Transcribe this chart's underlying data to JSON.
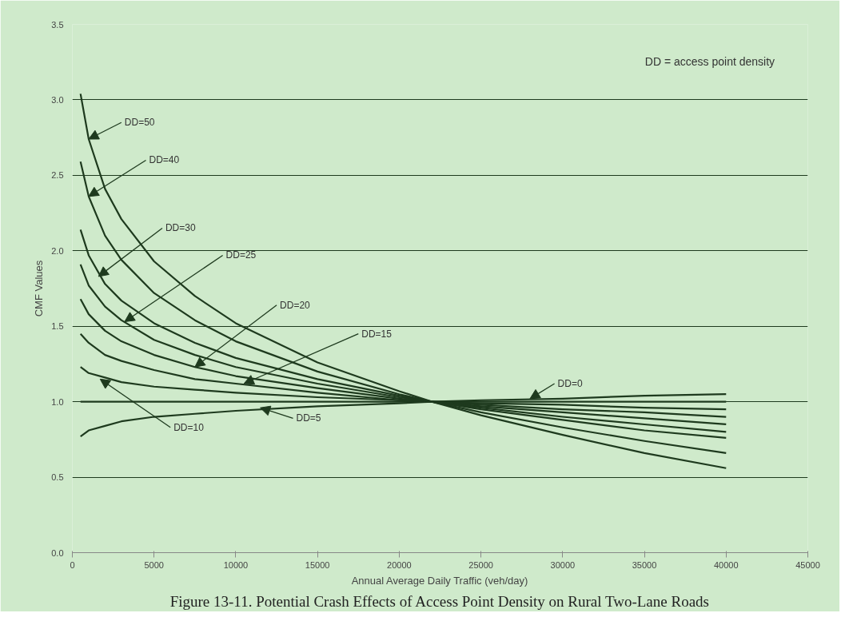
{
  "chart_data": {
    "type": "line",
    "title": "Figure 13-11. Potential Crash Effects of Access Point Density on Rural Two-Lane Roads",
    "xlabel": "Annual Average Daily Traffic (veh/day)",
    "ylabel": "CMF Values",
    "x": [
      500,
      1000,
      2000,
      3000,
      5000,
      7500,
      10000,
      15000,
      20000,
      22000,
      25000,
      30000,
      35000,
      40000
    ],
    "series": [
      {
        "color": "#1e3a1e",
        "values": [
          0.77,
          0.81,
          0.84,
          0.87,
          0.9,
          0.92,
          0.94,
          0.97,
          0.99,
          1.0,
          1.01,
          1.02,
          1.04,
          1.05
        ]
      },
      {
        "color": "#1e3a1e",
        "values": [
          1.0,
          1.0,
          1.0,
          1.0,
          1.0,
          1.0,
          1.0,
          1.0,
          1.0,
          1.0,
          1.0,
          1.0,
          1.0,
          1.0
        ]
      },
      {
        "color": "#1e3a1e",
        "values": [
          1.23,
          1.19,
          1.16,
          1.13,
          1.1,
          1.08,
          1.06,
          1.03,
          1.01,
          1.0,
          0.99,
          0.98,
          0.96,
          0.95
        ]
      },
      {
        "color": "#1e3a1e",
        "values": [
          1.45,
          1.39,
          1.31,
          1.27,
          1.21,
          1.15,
          1.12,
          1.06,
          1.01,
          1.0,
          0.98,
          0.95,
          0.93,
          0.9
        ]
      },
      {
        "color": "#1e3a1e",
        "values": [
          1.68,
          1.58,
          1.47,
          1.4,
          1.31,
          1.23,
          1.17,
          1.09,
          1.02,
          1.0,
          0.97,
          0.93,
          0.89,
          0.85
        ]
      },
      {
        "color": "#1e3a1e",
        "values": [
          1.91,
          1.77,
          1.63,
          1.54,
          1.41,
          1.31,
          1.23,
          1.12,
          1.03,
          1.0,
          0.96,
          0.9,
          0.85,
          0.8
        ]
      },
      {
        "color": "#1e3a1e",
        "values": [
          2.14,
          1.97,
          1.78,
          1.67,
          1.52,
          1.39,
          1.29,
          1.15,
          1.04,
          1.0,
          0.95,
          0.88,
          0.81,
          0.76
        ]
      },
      {
        "color": "#1e3a1e",
        "values": [
          2.59,
          2.36,
          2.1,
          1.94,
          1.72,
          1.54,
          1.4,
          1.2,
          1.05,
          1.0,
          0.93,
          0.83,
          0.74,
          0.66
        ]
      },
      {
        "color": "#1e3a1e",
        "values": [
          3.04,
          2.74,
          2.41,
          2.21,
          1.93,
          1.7,
          1.52,
          1.26,
          1.07,
          1.0,
          0.91,
          0.78,
          0.66,
          0.56
        ]
      }
    ],
    "xlim": [
      0,
      45000
    ],
    "xticks": [
      0,
      5000,
      10000,
      15000,
      20000,
      25000,
      30000,
      35000,
      40000,
      45000
    ],
    "ylim": [
      0,
      3.5
    ],
    "yticks": [
      {
        "value": 0,
        "label": "0.0"
      },
      {
        "value": 0.5,
        "label": "0.5"
      },
      {
        "value": 1,
        "label": "1.0"
      },
      {
        "value": 1.5,
        "label": "1.5"
      },
      {
        "value": 2,
        "label": "2.0"
      },
      {
        "value": 2.5,
        "label": "2.5"
      },
      {
        "value": 3,
        "label": "3.0"
      },
      {
        "value": 3.5,
        "label": "3.5"
      }
    ],
    "grid": "y",
    "marker": "none",
    "line_style": "solid",
    "annotations": [
      {
        "text": "DD=50",
        "x": 1000,
        "y": 2.74
      },
      {
        "text": "DD=40",
        "x": 1000,
        "y": 2.36
      },
      {
        "text": "DD=30",
        "x": 1600,
        "y": 1.83
      },
      {
        "text": "DD=25",
        "x": 3200,
        "y": 1.53
      },
      {
        "text": "DD=20",
        "x": 7500,
        "y": 1.23
      },
      {
        "text": "DD=15",
        "x": 10500,
        "y": 1.12
      },
      {
        "text": "DD=10",
        "x": 1700,
        "y": 1.15
      },
      {
        "text": "DD=5",
        "x": 11500,
        "y": 0.96
      },
      {
        "text": "DD=0",
        "x": 28000,
        "y": 1.02
      },
      "DD = access point density"
    ]
  }
}
